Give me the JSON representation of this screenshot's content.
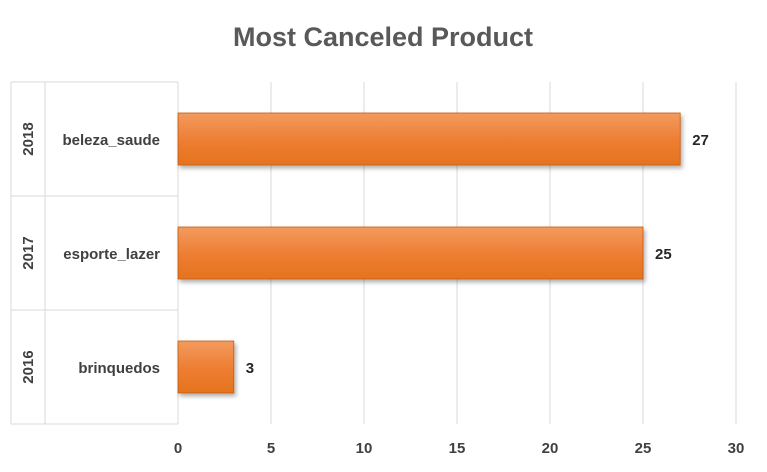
{
  "chart_data": {
    "type": "bar",
    "orientation": "horizontal",
    "title": "Most Canceled Product",
    "groups": [
      "2018",
      "2017",
      "2016"
    ],
    "categories": [
      "beleza_saude",
      "esporte_lazer",
      "brinquedos"
    ],
    "values": [
      27,
      25,
      3
    ],
    "xlim": [
      0,
      30
    ],
    "xticks": [
      0,
      5,
      10,
      15,
      20,
      25,
      30
    ],
    "grid": true,
    "data_labels": true,
    "legend": "none",
    "bar_color": "#ED7D31"
  }
}
